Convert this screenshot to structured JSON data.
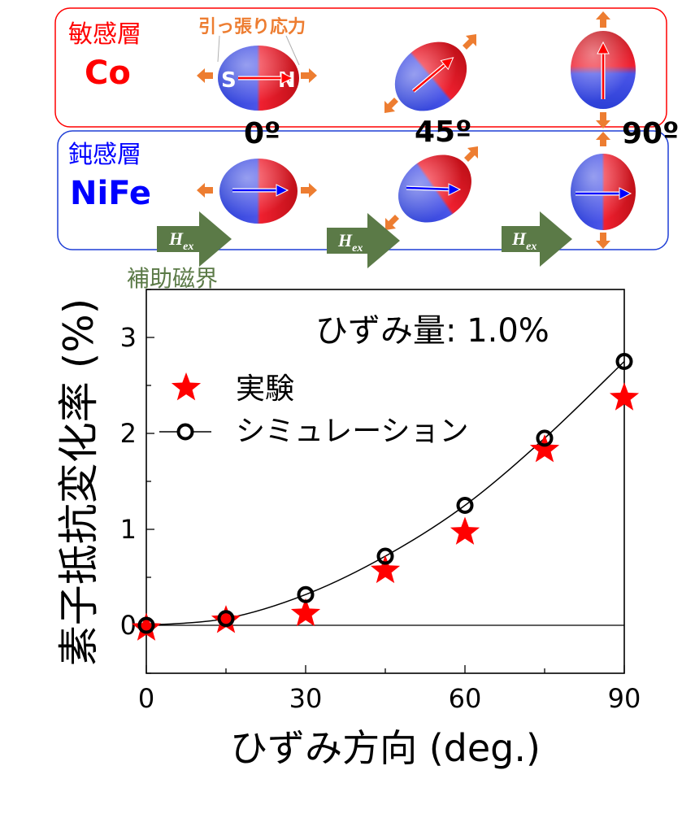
{
  "diagram": {
    "sensitive_layer": {
      "label": "敏感層",
      "material": "Co",
      "color": "#ff0000"
    },
    "insensitive_layer": {
      "label": "鈍感層",
      "material": "NiFe",
      "color": "#0000ff"
    },
    "tensile_stress_label": "引っ張り応力",
    "tensile_stress_color": "#ed7d31",
    "angles": [
      "0º",
      "45º",
      "90º"
    ],
    "magnet_poles": {
      "s": "S",
      "n": "N"
    },
    "field": {
      "symbol": "H",
      "subscript": "ex",
      "color": "#5b7a47"
    },
    "assist_field_label": "補助磁界"
  },
  "chart_data": {
    "type": "scatter",
    "ylabel": "素子抵抗変化率 (%)",
    "xlabel": "ひずみ方向 (deg.)",
    "annotation": "ひずみ量: 1.0%",
    "xlim": [
      0,
      90
    ],
    "ylim": [
      -0.5,
      3.5
    ],
    "x_ticks": [
      0,
      30,
      60,
      90
    ],
    "y_ticks": [
      0,
      1,
      2,
      3
    ],
    "zero_line": true,
    "series": [
      {
        "name": "実験",
        "marker": "star",
        "color": "#ff0000",
        "x": [
          0,
          15,
          30,
          45,
          60,
          75,
          90
        ],
        "y": [
          -0.03,
          0.05,
          0.12,
          0.57,
          0.97,
          1.83,
          2.37
        ]
      },
      {
        "name": "シミュレーション",
        "marker": "open-circle-line",
        "color": "#000000",
        "x": [
          0,
          15,
          30,
          45,
          60,
          75,
          90
        ],
        "y": [
          0.0,
          0.07,
          0.32,
          0.72,
          1.25,
          1.95,
          2.75
        ]
      }
    ]
  }
}
